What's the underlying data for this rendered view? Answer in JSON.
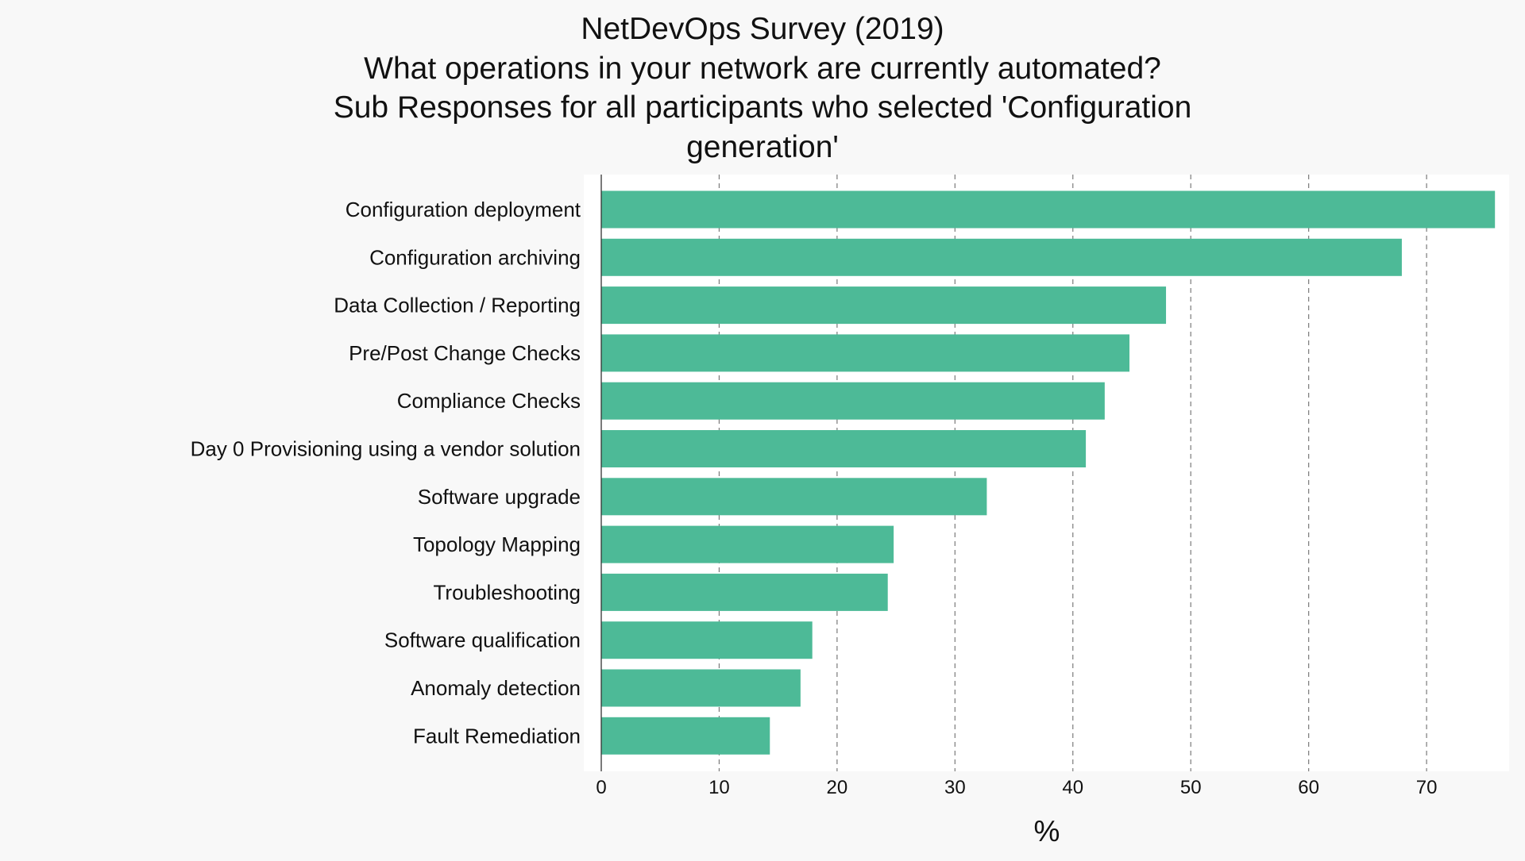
{
  "chart_data": {
    "type": "bar",
    "orientation": "horizontal",
    "title_lines": [
      "NetDevOps Survey (2019)",
      "What operations in your network are currently automated?",
      "Sub Responses for all participants who selected 'Configuration",
      "generation'"
    ],
    "xlabel": "%",
    "ylabel": "",
    "xlim": [
      0,
      77
    ],
    "xticks": [
      0,
      10,
      20,
      30,
      40,
      50,
      60,
      70
    ],
    "grid": "x dashed",
    "bar_color": "#4dba97",
    "categories": [
      "Configuration deployment",
      "Configuration archiving",
      "Data Collection / Reporting",
      "Pre/Post Change Checks",
      "Compliance Checks",
      "Day 0 Provisioning using a vendor solution",
      "Software upgrade",
      "Topology Mapping",
      "Troubleshooting",
      "Software qualification",
      "Anomaly detection",
      "Fault Remediation"
    ],
    "values": [
      75.8,
      67.9,
      47.9,
      44.8,
      42.7,
      41.1,
      32.7,
      24.8,
      24.3,
      17.9,
      16.9,
      14.3
    ]
  }
}
